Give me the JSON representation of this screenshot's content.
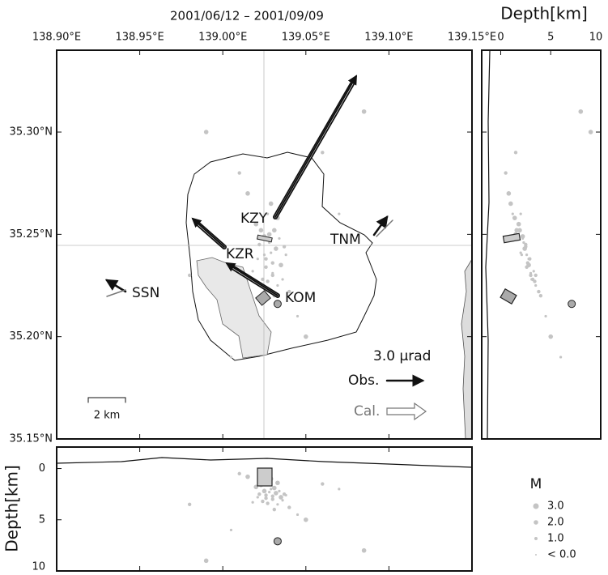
{
  "title": "2001/06/12 – 2001/09/09",
  "map": {
    "xlim": [
      138.9,
      139.15
    ],
    "ylim": [
      35.15,
      35.34
    ],
    "xticks": [
      {
        "value": 138.9,
        "label": "138.90°E"
      },
      {
        "value": 138.95,
        "label": "138.95°E"
      },
      {
        "value": 139.0,
        "label": "139.00°E"
      },
      {
        "value": 139.05,
        "label": "139.05°E"
      },
      {
        "value": 139.1,
        "label": "139.10°E"
      },
      {
        "value": 139.15,
        "label": "139.15°E"
      }
    ],
    "yticks": [
      {
        "value": 35.15,
        "label": "35.15°N"
      },
      {
        "value": 35.2,
        "label": "35.20°N"
      },
      {
        "value": 35.25,
        "label": "35.25°N"
      },
      {
        "value": 35.3,
        "label": "35.30°N"
      }
    ],
    "stations": [
      "KZY",
      "TNM",
      "KZR",
      "SSN",
      "KOM"
    ],
    "scale_label": "2 km",
    "tilt_label": "3.0 μrad",
    "obs_label": "Obs.",
    "cal_label": "Cal."
  },
  "depth_east": {
    "label": "Depth[km]",
    "xlim": [
      -1.9,
      10
    ],
    "xticks": [
      0,
      5,
      10
    ]
  },
  "depth_south": {
    "label": "Depth[km]",
    "ylim": [
      -2.1,
      10
    ],
    "yticks": [
      0,
      5,
      10
    ]
  },
  "events": {
    "lon": [
      139.025,
      139.03,
      139.028,
      139.033,
      139.022,
      139.035,
      139.027,
      139.031,
      139.02,
      139.038,
      139.024,
      139.029,
      139.034,
      139.026,
      139.032,
      139.018,
      139.04,
      139.023,
      139.036,
      139.03,
      139.015,
      139.045,
      139.01,
      139.05,
      139.005,
      139.06,
      138.99,
      139.07,
      138.98,
      139.085,
      139.028,
      139.026,
      139.031,
      139.029,
      139.027,
      139.033,
      139.021,
      139.037,
      139.025,
      139.03
    ],
    "lat": [
      35.24,
      35.23,
      35.25,
      35.225,
      35.245,
      35.235,
      35.26,
      35.22,
      35.255,
      35.24,
      35.228,
      35.265,
      35.248,
      35.238,
      35.243,
      35.232,
      35.222,
      35.252,
      35.228,
      35.236,
      35.27,
      35.21,
      35.28,
      35.2,
      35.19,
      35.29,
      35.3,
      35.26,
      35.23,
      35.31,
      35.246,
      35.234,
      35.252,
      35.241,
      35.227,
      35.258,
      35.238,
      35.244,
      35.249,
      35.231
    ],
    "depth": [
      2.1,
      3.0,
      1.5,
      3.5,
      2.5,
      2.8,
      1.2,
      4.0,
      1.8,
      2.6,
      3.2,
      1.0,
      2.2,
      2.9,
      2.4,
      3.3,
      3.8,
      1.6,
      3.1,
      2.7,
      0.8,
      4.5,
      0.5,
      5.0,
      6.0,
      1.5,
      9.0,
      2.0,
      3.5,
      8.0,
      2.3,
      2.6,
      1.9,
      2.0,
      3.4,
      1.4,
      2.8,
      2.5,
      2.2,
      3.0
    ]
  },
  "source": {
    "lon": 139.033,
    "lat": 35.216,
    "depth": 7.1
  },
  "legend": {
    "title": "M",
    "labels": [
      "3.0",
      "2.0",
      "1.0",
      "< 0.0"
    ]
  }
}
